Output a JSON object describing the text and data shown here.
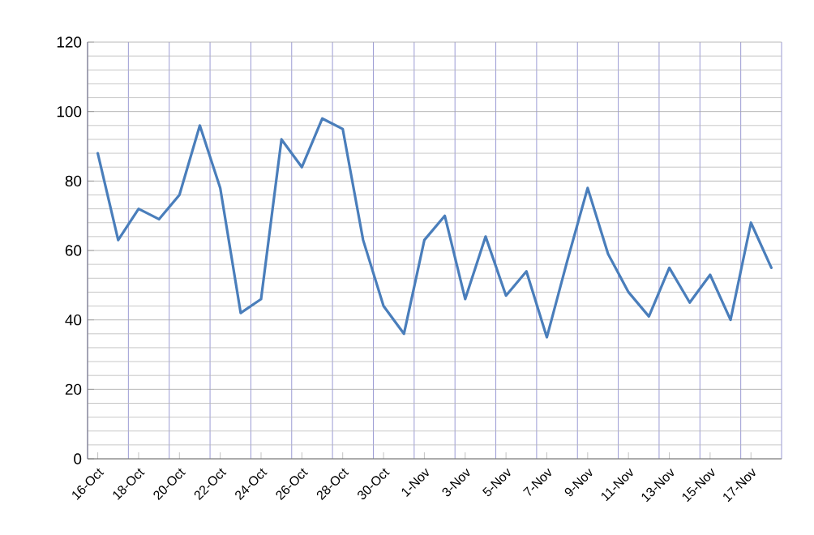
{
  "chart_data": {
    "type": "line",
    "categories": [
      "16-Oct",
      null,
      "18-Oct",
      null,
      "20-Oct",
      null,
      "22-Oct",
      null,
      "24-Oct",
      null,
      "26-Oct",
      null,
      "28-Oct",
      null,
      "30-Oct",
      null,
      "1-Nov",
      null,
      "3-Nov",
      null,
      "5-Nov",
      null,
      "7-Nov",
      null,
      "9-Nov",
      null,
      "11-Nov",
      null,
      "13-Nov",
      null,
      "15-Nov",
      null,
      "17-Nov",
      null
    ],
    "series": [
      {
        "color": "#4a7ebb",
        "values": [
          88,
          63,
          72,
          69,
          76,
          96,
          78,
          42,
          46,
          92,
          84,
          98,
          95,
          63,
          44,
          36,
          63,
          70,
          46,
          64,
          47,
          54,
          35,
          57,
          78,
          59,
          48,
          41,
          55,
          45,
          53,
          40,
          68,
          55
        ]
      }
    ],
    "ylim": [
      0,
      120
    ],
    "yticks": [
      0,
      20,
      40,
      60,
      80,
      100,
      120
    ],
    "grid": true,
    "marker": "none",
    "line_style": "solid"
  }
}
